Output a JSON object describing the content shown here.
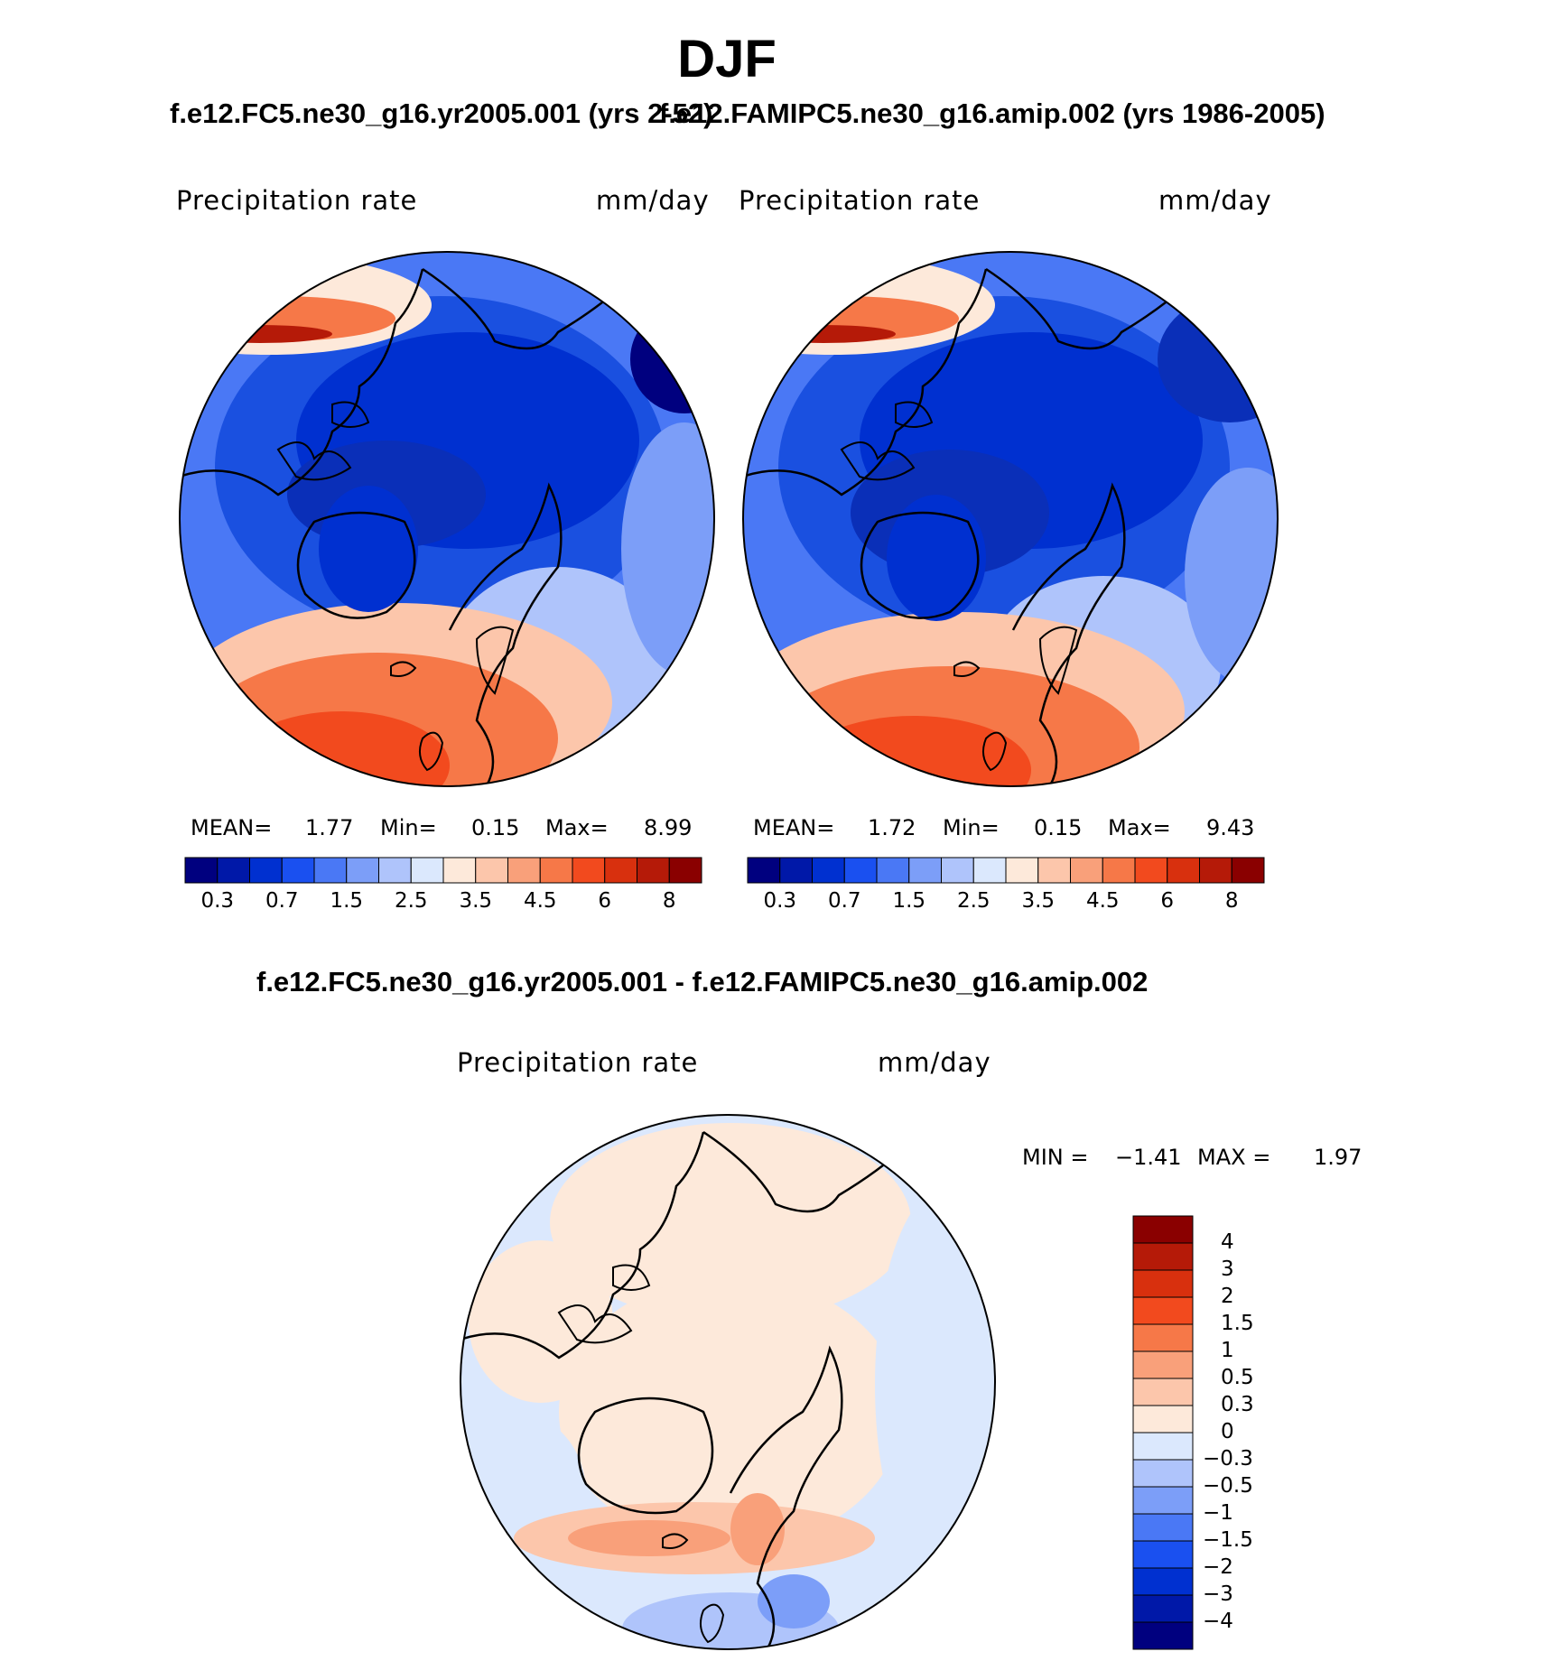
{
  "figure": {
    "title": "DJF",
    "left_case_title": "f.e12.FC5.ne30_g16.yr2005.001 (yrs 2-52)",
    "right_case_title": "f.e12.FAMIPC5.ne30_g16.amip.002 (yrs 1986-2005)",
    "diff_title": "f.e12.FC5.ne30_g16.yr2005.001 - f.e12.FAMIPC5.ne30_g16.amip.002"
  },
  "panels": {
    "left": {
      "variable": "Precipitation rate",
      "units": "mm/day",
      "mean_label": "MEAN=",
      "mean": "1.77",
      "min_label": "Min=",
      "min": "0.15",
      "max_label": "Max=",
      "max": "8.99"
    },
    "right": {
      "variable": "Precipitation rate",
      "units": "mm/day",
      "mean_label": "MEAN=",
      "mean": "1.72",
      "min_label": "Min=",
      "min": "0.15",
      "max_label": "Max=",
      "max": "9.43"
    },
    "diff": {
      "variable": "Precipitation rate",
      "units": "mm/day",
      "min_label": "MIN =",
      "min": "−1.41",
      "max_label": "MAX =",
      "max": "1.97"
    }
  },
  "colorbar_abs": {
    "colors": [
      "#00007f",
      "#0018a8",
      "#0030d0",
      "#1a50f0",
      "#4a78f5",
      "#7c9ef8",
      "#afc4fb",
      "#dbe8fd",
      "#fde9da",
      "#fcc6ab",
      "#f9a07a",
      "#f67848",
      "#f24a1e",
      "#d8300e",
      "#b51a08",
      "#8a0000"
    ],
    "ticks": [
      "0.3",
      "0.7",
      "1.5",
      "2.5",
      "3.5",
      "4.5",
      "6",
      "8"
    ]
  },
  "colorbar_diff": {
    "colors": [
      "#00007f",
      "#0018a8",
      "#0030d0",
      "#1a50f0",
      "#4a78f5",
      "#7c9ef8",
      "#afc4fb",
      "#dbe8fd",
      "#fde9da",
      "#fcc6ab",
      "#f9a07a",
      "#f67848",
      "#f24a1e",
      "#d8300e",
      "#b51a08",
      "#8a0000"
    ],
    "ticks": [
      "−4",
      "−3",
      "−2",
      "−1.5",
      "−1",
      "−0.5",
      "−0.3",
      "0",
      "0.3",
      "0.5",
      "1",
      "1.5",
      "2",
      "3",
      "4"
    ]
  },
  "map_colors": {
    "ocean_deep_blue": "#0a2fb8",
    "land_blue": "#1a50e0",
    "mid_blue": "#4a78f5",
    "light_blue": "#afc4fb",
    "pale_blue": "#dbe8fd",
    "atlantic_red": "#f24a1e",
    "storm_dark": "#b51a08",
    "diff_pale_blue": "#dbe8fd",
    "diff_pale_orange": "#fde9da",
    "diff_orange": "#f9a07a"
  }
}
